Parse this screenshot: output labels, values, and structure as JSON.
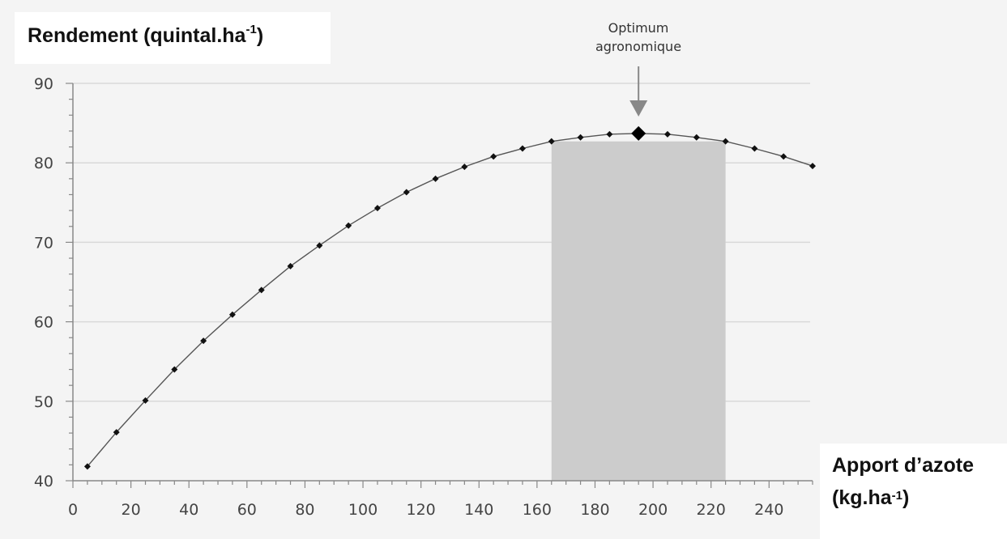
{
  "chart_data": {
    "type": "line",
    "ylabel": "Rendement (quintal.ha",
    "ylabel_sup": "-1",
    "ylabel_close": ")",
    "xlabel_line1": "Apport d’azote",
    "xlabel_line2": "(kg.ha",
    "xlabel_sup": "-1",
    "xlabel_close": ")",
    "annotation": {
      "line1": "Optimum",
      "line2": "agronomique",
      "x": 195,
      "y": 83.7
    },
    "xlim": [
      0,
      255
    ],
    "ylim": [
      40,
      90
    ],
    "xticks": [
      0,
      20,
      40,
      60,
      80,
      100,
      120,
      140,
      160,
      180,
      200,
      220,
      240
    ],
    "yticks": [
      40,
      50,
      60,
      70,
      80,
      90
    ],
    "shaded_region": {
      "x_start": 165,
      "x_end": 225
    },
    "grid": "horizontal",
    "colors": {
      "curve": "#555555",
      "marker": "#111111",
      "shade": "#cccccc",
      "arrow": "#888888"
    },
    "series": [
      {
        "x": [
          5,
          15,
          25,
          35,
          45,
          55,
          65,
          75,
          85,
          95,
          105,
          115,
          125,
          135,
          145,
          155,
          165,
          175,
          185,
          195,
          205,
          215,
          225,
          235,
          245,
          255
        ],
        "y": [
          41.8,
          46.1,
          50.1,
          54.0,
          57.6,
          60.9,
          64.0,
          67.0,
          69.6,
          72.1,
          74.3,
          76.3,
          78.0,
          79.5,
          80.8,
          81.8,
          82.7,
          83.2,
          83.6,
          83.7,
          83.6,
          83.2,
          82.7,
          81.8,
          80.8,
          79.6
        ]
      }
    ]
  }
}
